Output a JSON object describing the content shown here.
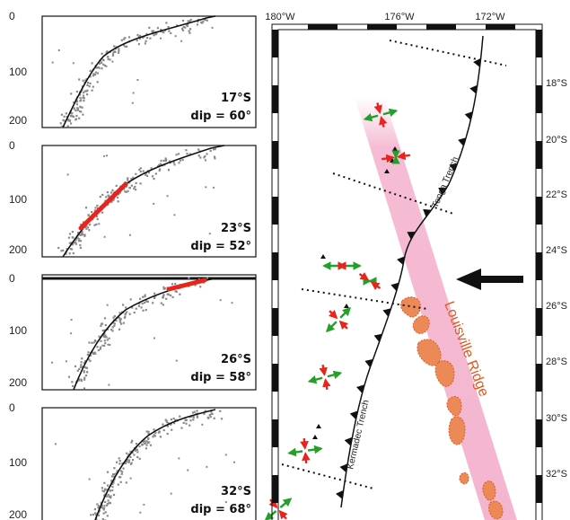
{
  "profiles": [
    {
      "id": "p17",
      "lat_label": "17°S",
      "dip_label": "dip = 60°",
      "ticks": [
        "0",
        "100",
        "200"
      ],
      "dip_deg": 60
    },
    {
      "id": "p23",
      "lat_label": "23°S",
      "dip_label": "dip = 52°",
      "ticks": [
        "0",
        "100",
        "200"
      ],
      "dip_deg": 52
    },
    {
      "id": "p26",
      "lat_label": "26°S",
      "dip_label": "dip = 58°",
      "ticks": [
        "0",
        "100",
        "200"
      ],
      "dip_deg": 58
    },
    {
      "id": "p32",
      "lat_label": "32°S",
      "dip_label": "dip = 68°",
      "ticks": [
        "0",
        "100",
        "200"
      ],
      "dip_deg": 68
    }
  ],
  "map": {
    "lon_labels": [
      "180°W",
      "176°W",
      "172°W"
    ],
    "lat_labels": [
      "18°S",
      "20°S",
      "22°S",
      "24°S",
      "26°S",
      "28°S",
      "30°S",
      "32°S"
    ],
    "trench_labels": {
      "tonga": "Tonga Trench",
      "kermadec": "Kermadec Trench"
    },
    "ridge_label": "Louisville Ridge"
  },
  "colors": {
    "seismicity": "#8a8a8a",
    "highlight": "#e8241c",
    "compression": "#e8241c",
    "extension": "#23a02a",
    "ridge_band": "#f4b5cf",
    "seamount_fill": "#ec8a57",
    "seamount_edge": "#e2571f",
    "ridge_text": "#e2571f"
  }
}
